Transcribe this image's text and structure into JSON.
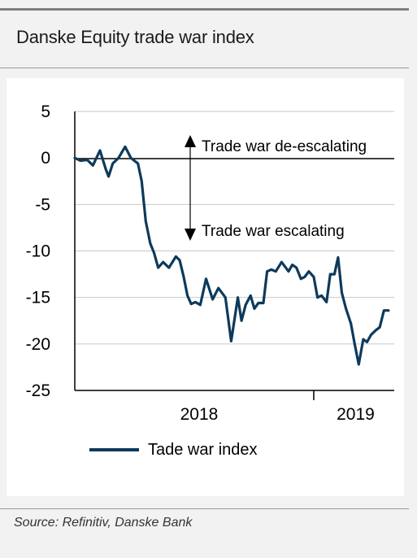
{
  "header": {
    "title": "Danske Equity trade war index"
  },
  "footer": {
    "source": "Source: Refinitiv, Danske Bank"
  },
  "chart_data": {
    "type": "line",
    "title": "Danske Equity trade war index",
    "xlabel": "",
    "ylabel": "",
    "ylim": [
      -25,
      5
    ],
    "y_ticks": [
      5,
      0,
      -5,
      -10,
      -15,
      -20,
      -25
    ],
    "x_tick_labels": [
      "2018",
      "2019"
    ],
    "x_range": [
      "2017-06-01",
      "2019-07-15"
    ],
    "year_divider": "2019-01-01",
    "grid": true,
    "legend_position": "bottom",
    "annotations": {
      "up": "Trade war de-escalating",
      "down": "Trade war escalating"
    },
    "series": [
      {
        "name": "Tade war index",
        "color": "#0d3a5c",
        "x": [
          "2017-06-01",
          "2017-06-15",
          "2017-07-01",
          "2017-07-15",
          "2017-08-01",
          "2017-08-15",
          "2017-08-22",
          "2017-09-01",
          "2017-09-15",
          "2017-10-01",
          "2017-10-15",
          "2017-11-01",
          "2017-11-10",
          "2017-11-20",
          "2017-12-01",
          "2017-12-10",
          "2017-12-20",
          "2018-01-01",
          "2018-01-15",
          "2018-02-01",
          "2018-02-10",
          "2018-02-20",
          "2018-03-01",
          "2018-03-10",
          "2018-03-20",
          "2018-04-01",
          "2018-04-15",
          "2018-05-01",
          "2018-05-15",
          "2018-06-01",
          "2018-06-15",
          "2018-07-01",
          "2018-07-10",
          "2018-07-20",
          "2018-08-01",
          "2018-08-10",
          "2018-08-20",
          "2018-09-01",
          "2018-09-10",
          "2018-09-20",
          "2018-10-01",
          "2018-10-15",
          "2018-11-01",
          "2018-11-10",
          "2018-11-20",
          "2018-12-01",
          "2018-12-10",
          "2018-12-20",
          "2019-01-01",
          "2019-01-10",
          "2019-01-20",
          "2019-02-01",
          "2019-02-10",
          "2019-02-20",
          "2019-03-01",
          "2019-03-10",
          "2019-03-20",
          "2019-04-01",
          "2019-04-10",
          "2019-04-20",
          "2019-05-01",
          "2019-05-10",
          "2019-05-20",
          "2019-06-01",
          "2019-06-10",
          "2019-06-20",
          "2019-07-01"
        ],
        "values": [
          0.0,
          -0.3,
          -0.2,
          -0.8,
          0.8,
          -1.2,
          -2.0,
          -0.6,
          0.0,
          1.2,
          0.0,
          -0.6,
          -2.5,
          -6.8,
          -9.2,
          -10.2,
          -11.8,
          -11.2,
          -11.8,
          -10.6,
          -11.0,
          -12.8,
          -14.8,
          -15.7,
          -15.5,
          -15.8,
          -13.0,
          -15.2,
          -14.0,
          -15.0,
          -19.7,
          -15.0,
          -17.5,
          -15.8,
          -14.8,
          -16.2,
          -15.6,
          -15.6,
          -12.2,
          -12.0,
          -12.2,
          -11.2,
          -12.2,
          -11.5,
          -11.8,
          -13.0,
          -12.8,
          -12.2,
          -12.8,
          -15.0,
          -14.8,
          -15.5,
          -12.5,
          -12.5,
          -10.7,
          -14.5,
          -16.2,
          -17.8,
          -20.0,
          -22.2,
          -19.5,
          -19.8,
          -19.0,
          -18.5,
          -18.2,
          -16.4,
          -16.4
        ]
      }
    ]
  }
}
